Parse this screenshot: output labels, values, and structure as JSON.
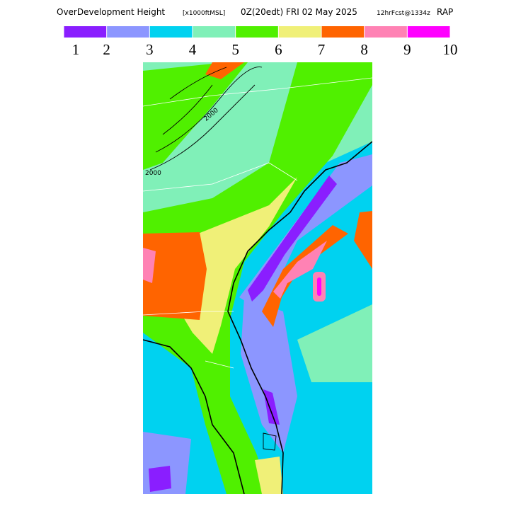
{
  "title": {
    "product": "OverDevelopment Height",
    "units": "[x1000ftMSL]",
    "valid": "0Z(20edt) FRI 02 May 2025",
    "forecast": "12hrFcst@1334z",
    "model": "RAP"
  },
  "colorbar": {
    "colors": [
      "#8a1eff",
      "#8c96ff",
      "#00d2f0",
      "#80f0b8",
      "#50f000",
      "#f0f078",
      "#ff6400",
      "#ff82b4",
      "#ff00ff"
    ],
    "labels": [
      1,
      2,
      3,
      4,
      5,
      6,
      7,
      8,
      9,
      10
    ]
  },
  "contour_labels": [
    "2000",
    "2000"
  ]
}
